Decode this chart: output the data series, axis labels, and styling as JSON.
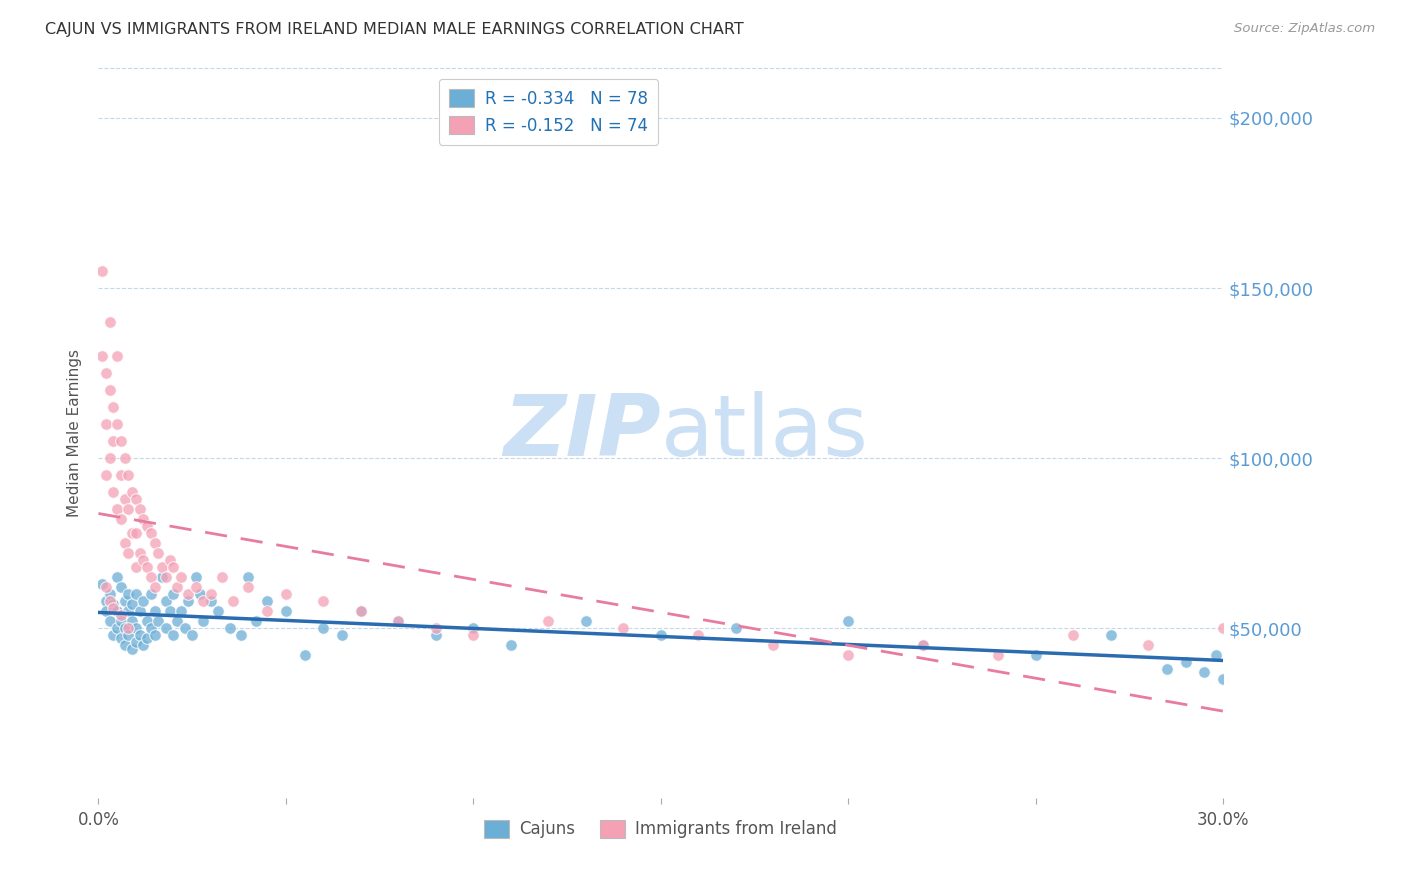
{
  "title": "CAJUN VS IMMIGRANTS FROM IRELAND MEDIAN MALE EARNINGS CORRELATION CHART",
  "source": "Source: ZipAtlas.com",
  "ylabel": "Median Male Earnings",
  "ytick_labels": [
    "$50,000",
    "$100,000",
    "$150,000",
    "$200,000"
  ],
  "ytick_values": [
    50000,
    100000,
    150000,
    200000
  ],
  "xmin": 0.0,
  "xmax": 0.3,
  "ymin": 0,
  "ymax": 215000,
  "legend_line1": "R = -0.334   N = 78",
  "legend_line2": "R = -0.152   N = 74",
  "cajun_color": "#6baed6",
  "ireland_color": "#f4a0b5",
  "cajun_trend_color": "#2b6cb0",
  "ireland_trend_color": "#e87ca0",
  "watermark_zip": "ZIP",
  "watermark_atlas": "atlas",
  "watermark_color": "#cce0f5",
  "cajun_scatter_x": [
    0.001,
    0.002,
    0.002,
    0.003,
    0.003,
    0.004,
    0.004,
    0.005,
    0.005,
    0.005,
    0.006,
    0.006,
    0.006,
    0.007,
    0.007,
    0.007,
    0.008,
    0.008,
    0.008,
    0.009,
    0.009,
    0.009,
    0.01,
    0.01,
    0.01,
    0.011,
    0.011,
    0.012,
    0.012,
    0.013,
    0.013,
    0.014,
    0.014,
    0.015,
    0.015,
    0.016,
    0.017,
    0.018,
    0.018,
    0.019,
    0.02,
    0.02,
    0.021,
    0.022,
    0.023,
    0.024,
    0.025,
    0.026,
    0.027,
    0.028,
    0.03,
    0.032,
    0.035,
    0.038,
    0.04,
    0.042,
    0.045,
    0.05,
    0.055,
    0.06,
    0.065,
    0.07,
    0.08,
    0.09,
    0.1,
    0.11,
    0.13,
    0.15,
    0.17,
    0.2,
    0.22,
    0.25,
    0.27,
    0.285,
    0.29,
    0.295,
    0.298,
    0.3
  ],
  "cajun_scatter_y": [
    63000,
    58000,
    55000,
    60000,
    52000,
    57000,
    48000,
    65000,
    55000,
    50000,
    62000,
    52000,
    47000,
    58000,
    50000,
    45000,
    55000,
    60000,
    48000,
    52000,
    57000,
    44000,
    60000,
    50000,
    46000,
    55000,
    48000,
    58000,
    45000,
    52000,
    47000,
    60000,
    50000,
    55000,
    48000,
    52000,
    65000,
    58000,
    50000,
    55000,
    60000,
    48000,
    52000,
    55000,
    50000,
    58000,
    48000,
    65000,
    60000,
    52000,
    58000,
    55000,
    50000,
    48000,
    65000,
    52000,
    58000,
    55000,
    42000,
    50000,
    48000,
    55000,
    52000,
    48000,
    50000,
    45000,
    52000,
    48000,
    50000,
    52000,
    45000,
    42000,
    48000,
    38000,
    40000,
    37000,
    42000,
    35000
  ],
  "ireland_scatter_x": [
    0.001,
    0.001,
    0.002,
    0.002,
    0.002,
    0.003,
    0.003,
    0.003,
    0.004,
    0.004,
    0.004,
    0.005,
    0.005,
    0.005,
    0.006,
    0.006,
    0.006,
    0.007,
    0.007,
    0.007,
    0.008,
    0.008,
    0.008,
    0.009,
    0.009,
    0.01,
    0.01,
    0.01,
    0.011,
    0.011,
    0.012,
    0.012,
    0.013,
    0.013,
    0.014,
    0.014,
    0.015,
    0.015,
    0.016,
    0.017,
    0.018,
    0.019,
    0.02,
    0.021,
    0.022,
    0.024,
    0.026,
    0.028,
    0.03,
    0.033,
    0.036,
    0.04,
    0.045,
    0.05,
    0.06,
    0.07,
    0.08,
    0.09,
    0.1,
    0.12,
    0.14,
    0.16,
    0.18,
    0.2,
    0.22,
    0.24,
    0.26,
    0.28,
    0.3,
    0.002,
    0.003,
    0.004,
    0.006,
    0.008
  ],
  "ireland_scatter_y": [
    155000,
    130000,
    125000,
    110000,
    95000,
    140000,
    120000,
    100000,
    115000,
    105000,
    90000,
    130000,
    110000,
    85000,
    105000,
    95000,
    82000,
    100000,
    88000,
    75000,
    95000,
    85000,
    72000,
    90000,
    78000,
    88000,
    78000,
    68000,
    85000,
    72000,
    82000,
    70000,
    80000,
    68000,
    78000,
    65000,
    75000,
    62000,
    72000,
    68000,
    65000,
    70000,
    68000,
    62000,
    65000,
    60000,
    62000,
    58000,
    60000,
    65000,
    58000,
    62000,
    55000,
    60000,
    58000,
    55000,
    52000,
    50000,
    48000,
    52000,
    50000,
    48000,
    45000,
    42000,
    45000,
    42000,
    48000,
    45000,
    50000,
    62000,
    58000,
    56000,
    54000,
    50000
  ]
}
